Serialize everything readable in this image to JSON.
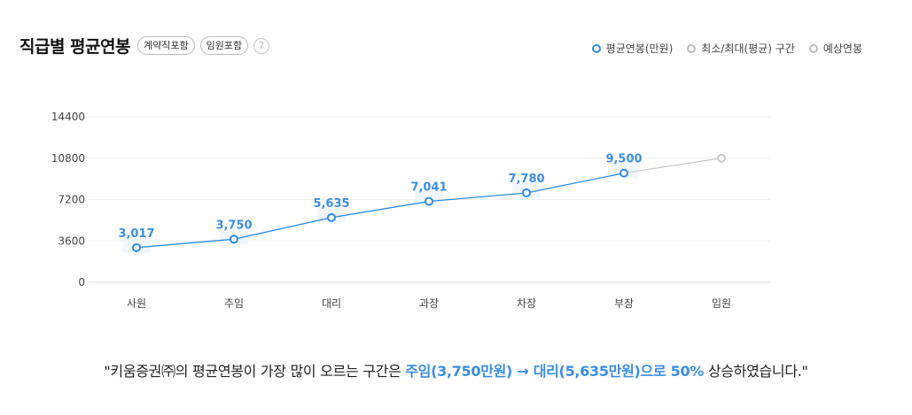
{
  "header": {
    "title": "직급별 평균연봉",
    "chips": [
      "계약직포함",
      "임원포함"
    ],
    "help_icon": "?"
  },
  "legend": {
    "items": [
      {
        "label": "평균연봉(만원)",
        "color": "#2d8ce8"
      },
      {
        "label": "최소/최대(평균) 구간",
        "color": "#bdbdbd"
      },
      {
        "label": "예상연봉",
        "color": "#bdbdbd"
      }
    ]
  },
  "chart_data": {
    "type": "line",
    "categories": [
      "사원",
      "주임",
      "대리",
      "과장",
      "차장",
      "부장",
      "임원"
    ],
    "series": [
      {
        "name": "평균연봉(만원)",
        "values": [
          3017,
          3750,
          5635,
          7041,
          7780,
          9500,
          null
        ],
        "color": "#2d8ce8"
      },
      {
        "name": "예상연봉",
        "values": [
          null,
          null,
          null,
          null,
          null,
          9500,
          10800
        ],
        "color": "#c8c8c8"
      }
    ],
    "data_labels": [
      "3,017",
      "3,750",
      "5,635",
      "7,041",
      "7,780",
      "9,500",
      ""
    ],
    "yticks": [
      0,
      3600,
      7200,
      10800,
      14400
    ],
    "ylim": [
      0,
      14400
    ],
    "grid": true,
    "legend_position": "top-right"
  },
  "summary": {
    "prefix": "\"키움증권㈜의 평균연봉이 가장 많이 오르는 구간은 ",
    "highlight": "주임(3,750만원) → 대리(5,635만원)으로 50%",
    "suffix": " 상승하였습니다.\""
  }
}
